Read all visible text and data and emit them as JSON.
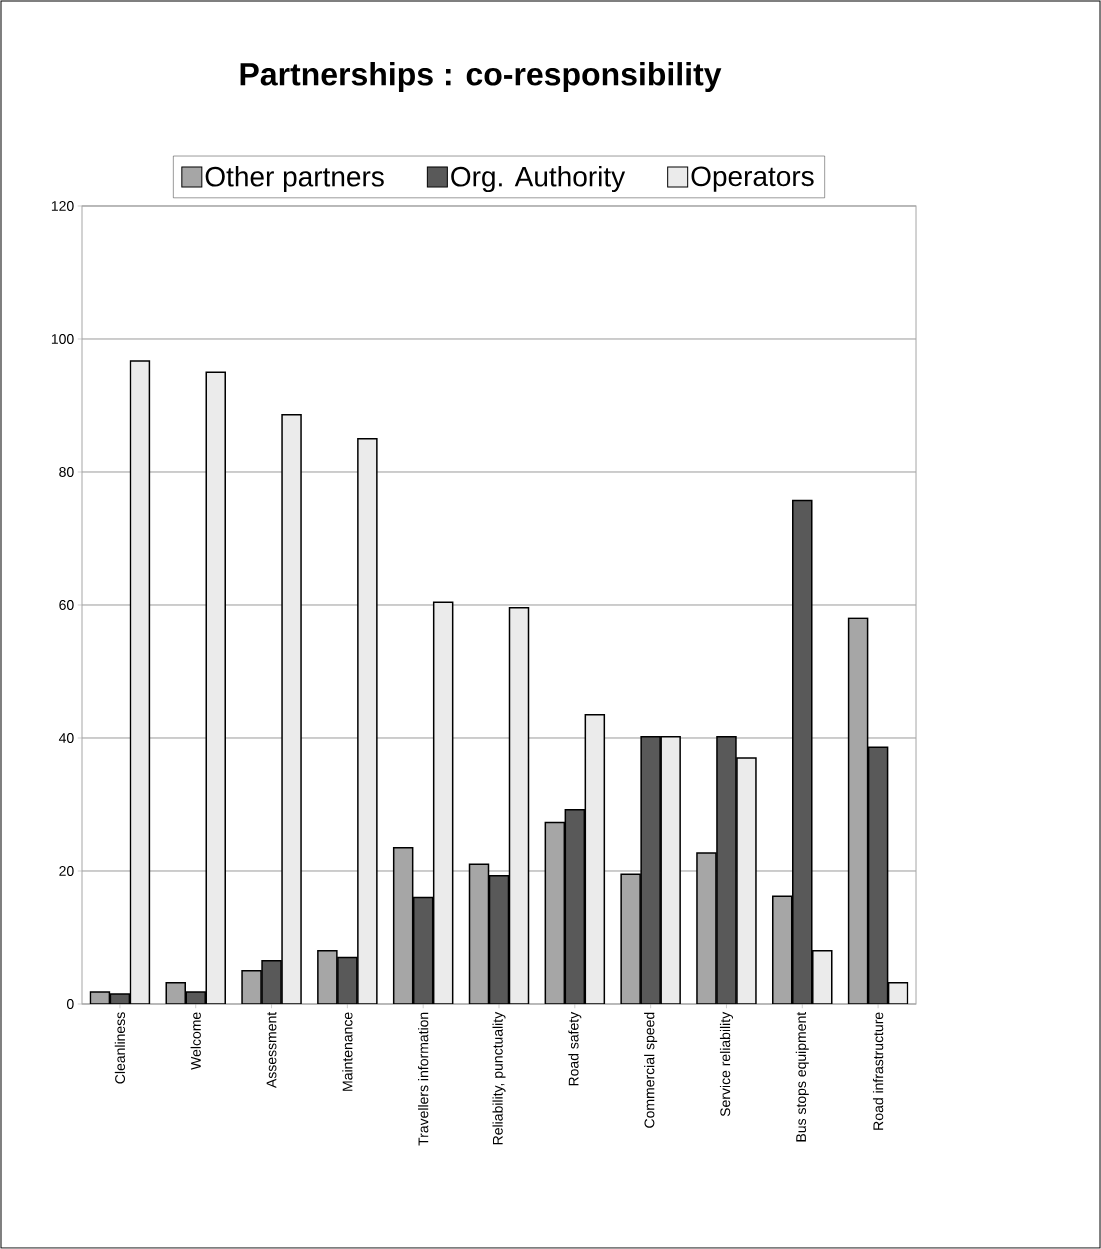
{
  "chart_data": {
    "type": "bar",
    "title": "Partnerships : co-responsibility",
    "categories": [
      "Cleanliness",
      "Welcome",
      "Assessment",
      "Maintenance",
      "Travellers information",
      "Reliability, punctuality",
      "Road safety",
      "Commercial speed",
      "Service reliability",
      "Bus stops equipment",
      "Road infrastructure"
    ],
    "series": [
      {
        "name": "Other partners",
        "color": "#a6a6a6",
        "values": [
          1.8,
          3.2,
          5.0,
          8.0,
          23.5,
          21.0,
          27.3,
          19.5,
          22.7,
          16.2,
          58.0
        ]
      },
      {
        "name": "Org. Authority",
        "color": "#595959",
        "values": [
          1.5,
          1.8,
          6.5,
          7.0,
          16.0,
          19.3,
          29.2,
          40.2,
          40.2,
          75.7,
          38.6
        ]
      },
      {
        "name": "Operators",
        "color": "#ebebeb",
        "values": [
          96.7,
          95.0,
          88.6,
          85.0,
          60.4,
          59.6,
          43.5,
          40.2,
          37.0,
          8.0,
          3.2
        ]
      }
    ],
    "ylim": [
      0,
      120
    ],
    "yticks": [
      0,
      20,
      40,
      60,
      80,
      100,
      120
    ],
    "grid": "y",
    "legend": "top"
  }
}
